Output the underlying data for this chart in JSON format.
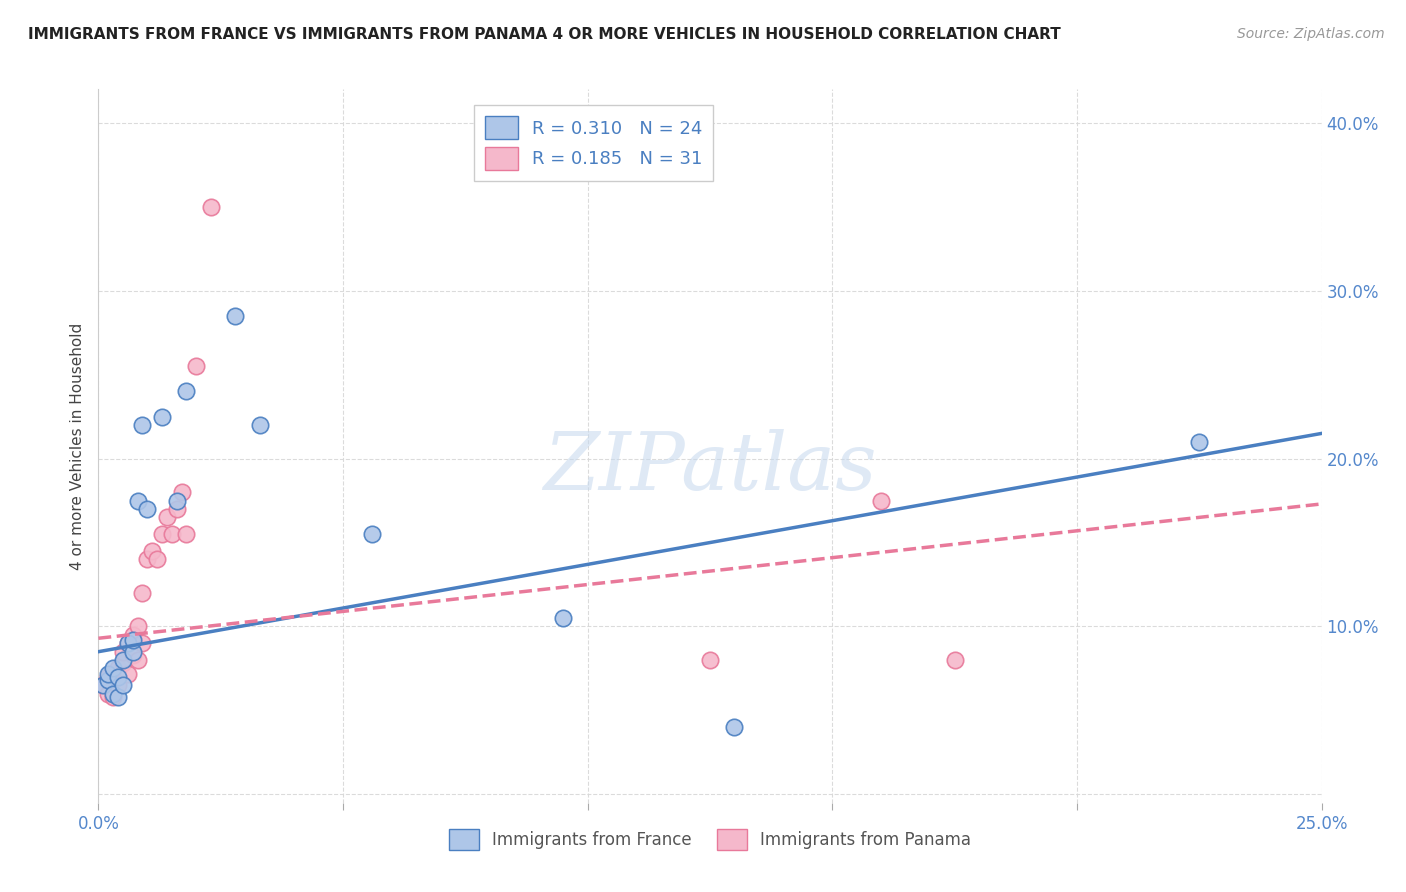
{
  "title": "IMMIGRANTS FROM FRANCE VS IMMIGRANTS FROM PANAMA 4 OR MORE VEHICLES IN HOUSEHOLD CORRELATION CHART",
  "source": "Source: ZipAtlas.com",
  "ylabel": "4 or more Vehicles in Household",
  "xlim": [
    0.0,
    0.25
  ],
  "ylim": [
    -0.005,
    0.42
  ],
  "france_color": "#aec6e8",
  "panama_color": "#f5b8cb",
  "france_line_color": "#4a7fc1",
  "panama_line_color": "#e8799a",
  "legend_france_label": "Immigrants from France",
  "legend_panama_label": "Immigrants from Panama",
  "R_france": 0.31,
  "N_france": 24,
  "R_panama": 0.185,
  "N_panama": 31,
  "france_x": [
    0.001,
    0.002,
    0.002,
    0.003,
    0.003,
    0.004,
    0.004,
    0.005,
    0.005,
    0.006,
    0.007,
    0.007,
    0.008,
    0.009,
    0.01,
    0.013,
    0.016,
    0.018,
    0.028,
    0.033,
    0.056,
    0.095,
    0.13,
    0.225
  ],
  "france_y": [
    0.065,
    0.068,
    0.072,
    0.06,
    0.075,
    0.058,
    0.07,
    0.065,
    0.08,
    0.09,
    0.085,
    0.092,
    0.175,
    0.22,
    0.17,
    0.225,
    0.175,
    0.24,
    0.285,
    0.22,
    0.155,
    0.105,
    0.04,
    0.21
  ],
  "panama_x": [
    0.001,
    0.002,
    0.002,
    0.003,
    0.003,
    0.004,
    0.004,
    0.005,
    0.005,
    0.006,
    0.006,
    0.007,
    0.007,
    0.008,
    0.008,
    0.009,
    0.009,
    0.01,
    0.011,
    0.012,
    0.013,
    0.014,
    0.015,
    0.016,
    0.017,
    0.018,
    0.02,
    0.023,
    0.125,
    0.16,
    0.175
  ],
  "panama_y": [
    0.065,
    0.06,
    0.07,
    0.058,
    0.072,
    0.075,
    0.065,
    0.078,
    0.085,
    0.072,
    0.09,
    0.083,
    0.095,
    0.08,
    0.1,
    0.09,
    0.12,
    0.14,
    0.145,
    0.14,
    0.155,
    0.165,
    0.155,
    0.17,
    0.18,
    0.155,
    0.255,
    0.35,
    0.08,
    0.175,
    0.08
  ],
  "france_line_x0": 0.0,
  "france_line_y0": 0.085,
  "france_line_x1": 0.25,
  "france_line_y1": 0.215,
  "panama_line_x0": 0.0,
  "panama_line_y0": 0.093,
  "panama_line_x1": 0.25,
  "panama_line_y1": 0.173,
  "watermark": "ZIPatlas",
  "background_color": "#ffffff",
  "grid_color": "#d8d8d8"
}
